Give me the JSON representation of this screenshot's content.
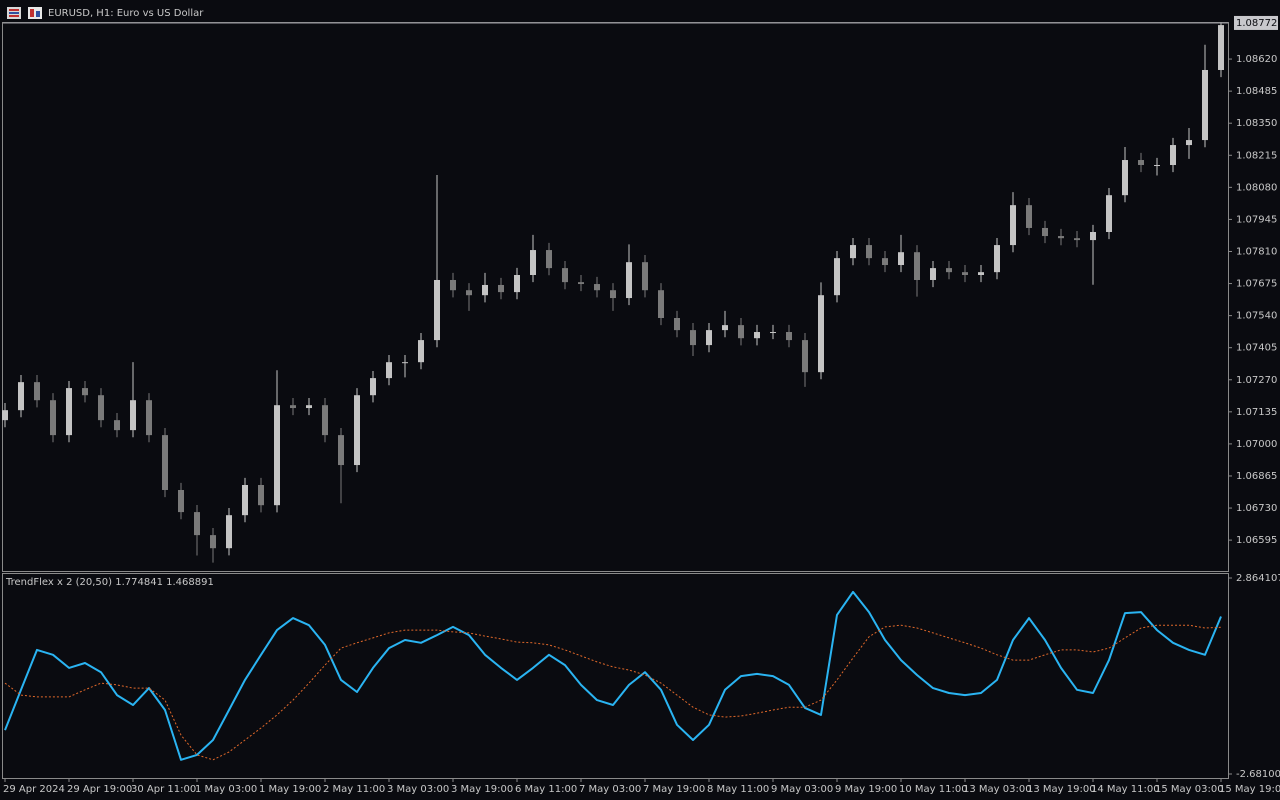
{
  "chart_data": [
    {
      "type": "candlestick",
      "title": "EURUSD, H1:  Euro vs US Dollar",
      "categories": [
        "29 Apr 2024",
        null,
        null,
        null,
        "29 Apr 19:00",
        null,
        null,
        null,
        "30 Apr 11:00",
        null,
        null,
        null,
        "1 May 03:00",
        null,
        null,
        null,
        "1 May 19:00",
        null,
        null,
        null,
        "2 May 11:00",
        null,
        null,
        null,
        "3 May 03:00",
        null,
        null,
        null,
        "3 May 19:00",
        null,
        null,
        null,
        "6 May 11:00",
        null,
        null,
        null,
        "7 May 03:00",
        null,
        null,
        null,
        "7 May 19:00",
        null,
        null,
        null,
        "8 May 11:00",
        null,
        null,
        null,
        "9 May 03:00",
        null,
        null,
        null,
        "9 May 19:00",
        null,
        null,
        null,
        "10 May 11:00",
        null,
        null,
        null,
        "13 May 03:00",
        null,
        null,
        null,
        "13 May 19:00",
        null,
        null,
        null,
        "14 May 11:00",
        null,
        null,
        null,
        "15 May 03:00",
        null,
        null,
        null,
        "15 May 19:00"
      ],
      "open": [
        1.071,
        1.07142,
        1.0726,
        1.07184,
        1.07037,
        1.07235,
        1.07205,
        1.071,
        1.07058,
        1.07184,
        1.07037,
        1.06806,
        1.06713,
        1.06616,
        1.06561,
        1.067,
        1.06827,
        1.06742,
        1.07163,
        1.07151,
        1.07163,
        1.07037,
        1.06911,
        1.07205,
        1.07277,
        1.07344,
        1.07344,
        1.07437,
        1.0769,
        1.07647,
        1.07626,
        1.07669,
        1.07639,
        1.07711,
        1.07816,
        1.0774,
        1.07681,
        1.07673,
        1.07647,
        1.07614,
        1.07765,
        1.07647,
        1.0753,
        1.07479,
        1.07416,
        1.07479,
        1.075,
        1.07445,
        1.07471,
        1.07471,
        1.07437,
        1.07302,
        1.07626,
        1.07782,
        1.07837,
        1.07782,
        1.07753,
        1.07807,
        1.0769,
        1.0774,
        1.07723,
        1.07711,
        1.07723,
        1.07837,
        1.08005,
        1.07909,
        1.07875,
        1.07866,
        1.07858,
        1.07892,
        1.08047,
        1.08195,
        1.08174,
        1.08174,
        1.08258,
        1.08279,
        1.08574
      ],
      "high": [
        1.07172,
        1.0729,
        1.0729,
        1.07214,
        1.07265,
        1.07265,
        1.07235,
        1.0713,
        1.07344,
        1.07214,
        1.07067,
        1.06836,
        1.06743,
        1.06646,
        1.0673,
        1.06857,
        1.06857,
        1.0731,
        1.07193,
        1.07193,
        1.07193,
        1.07067,
        1.07235,
        1.07307,
        1.07374,
        1.07374,
        1.07467,
        1.08132,
        1.0772,
        1.07677,
        1.0772,
        1.07699,
        1.07741,
        1.0788,
        1.07846,
        1.0777,
        1.07711,
        1.07703,
        1.07677,
        1.0784,
        1.07795,
        1.07677,
        1.0756,
        1.07509,
        1.07509,
        1.0756,
        1.0753,
        1.07501,
        1.07501,
        1.07501,
        1.07467,
        1.0768,
        1.07812,
        1.07867,
        1.07867,
        1.07812,
        1.0788,
        1.07837,
        1.0777,
        1.0777,
        1.07753,
        1.07753,
        1.07867,
        1.0806,
        1.08035,
        1.07939,
        1.07905,
        1.07896,
        1.07922,
        1.08077,
        1.0825,
        1.08225,
        1.08204,
        1.08288,
        1.0833,
        1.0868,
        1.08775
      ],
      "low": [
        1.0707,
        1.07112,
        1.07154,
        1.07007,
        1.07007,
        1.07175,
        1.0707,
        1.07028,
        1.07028,
        1.07007,
        1.06776,
        1.06683,
        1.0653,
        1.065,
        1.06531,
        1.0667,
        1.06712,
        1.06712,
        1.07121,
        1.07121,
        1.07007,
        1.0675,
        1.06881,
        1.07175,
        1.07247,
        1.0728,
        1.07314,
        1.07407,
        1.07617,
        1.0756,
        1.07596,
        1.07609,
        1.07609,
        1.07681,
        1.0771,
        1.07651,
        1.07643,
        1.07617,
        1.0756,
        1.07584,
        1.07617,
        1.075,
        1.07449,
        1.0737,
        1.07386,
        1.07449,
        1.07415,
        1.07415,
        1.07441,
        1.07407,
        1.0724,
        1.07272,
        1.07596,
        1.07752,
        1.07752,
        1.07723,
        1.07723,
        1.0762,
        1.0766,
        1.07693,
        1.07681,
        1.07681,
        1.07693,
        1.07807,
        1.07879,
        1.07845,
        1.07836,
        1.07828,
        1.0767,
        1.07862,
        1.08017,
        1.08144,
        1.0813,
        1.08144,
        1.082,
        1.08249,
        1.08544
      ],
      "close": [
        1.07142,
        1.0726,
        1.07184,
        1.07037,
        1.07235,
        1.07205,
        1.071,
        1.07058,
        1.07184,
        1.07037,
        1.06806,
        1.06713,
        1.06616,
        1.06561,
        1.067,
        1.06827,
        1.06742,
        1.07163,
        1.07151,
        1.07163,
        1.07037,
        1.06911,
        1.07205,
        1.07277,
        1.07344,
        1.07344,
        1.07437,
        1.0769,
        1.07647,
        1.07626,
        1.07669,
        1.07639,
        1.07711,
        1.07816,
        1.0774,
        1.07681,
        1.07673,
        1.07647,
        1.07614,
        1.07765,
        1.07647,
        1.0753,
        1.07479,
        1.07416,
        1.07479,
        1.075,
        1.07445,
        1.07471,
        1.07471,
        1.07437,
        1.07302,
        1.07626,
        1.07782,
        1.07837,
        1.07782,
        1.07753,
        1.07807,
        1.0769,
        1.0774,
        1.07723,
        1.07711,
        1.07723,
        1.07837,
        1.08005,
        1.07909,
        1.07875,
        1.07866,
        1.07858,
        1.07892,
        1.08047,
        1.08195,
        1.08174,
        1.08174,
        1.08258,
        1.08279,
        1.08574,
        1.08763
      ],
      "current_price": 1.08772,
      "ylim": [
        1.06465,
        1.08776
      ],
      "yticks": [
        {
          "value": 1.0862,
          "label": "1.08620"
        },
        1.08485,
        {
          "value": 1.0835,
          "label": "1.08350"
        },
        1.08215,
        {
          "value": 1.0808,
          "label": "1.08080"
        },
        1.07945,
        {
          "value": 1.0781,
          "label": "1.07810"
        },
        1.07675,
        {
          "value": 1.0754,
          "label": "1.07540"
        },
        1.07405,
        {
          "value": 1.0727,
          "label": "1.07270"
        },
        1.07135,
        {
          "value": 1.07,
          "label": "1.07000"
        },
        1.06865,
        {
          "value": 1.0673,
          "label": "1.06730"
        },
        1.06595
      ],
      "grid": false,
      "colors": {
        "up": "#c4c4c4",
        "down": "#7a7a7a"
      }
    },
    {
      "type": "line",
      "title": "TrendFlex x 2 (20,50)",
      "series": [
        {
          "color": "#2ab4f2",
          "style": "solid",
          "values": [
            -1.44,
            -0.3,
            0.83,
            0.69,
            0.32,
            0.46,
            0.2,
            -0.45,
            -0.73,
            -0.25,
            -0.87,
            -2.28,
            -2.14,
            -1.72,
            -0.87,
            -0.02,
            0.69,
            1.39,
            1.73,
            1.53,
            0.97,
            -0.02,
            -0.36,
            0.32,
            0.88,
            1.11,
            1.03,
            1.25,
            1.48,
            1.25,
            0.69,
            0.32,
            -0.02,
            0.32,
            0.69,
            0.4,
            -0.16,
            -0.59,
            -0.73,
            -0.16,
            0.2,
            -0.3,
            -1.29,
            -1.72,
            -1.29,
            -0.3,
            0.09,
            0.15,
            0.09,
            -0.16,
            -0.81,
            -1.01,
            1.82,
            2.47,
            1.9,
            1.11,
            0.54,
            0.12,
            -0.25,
            -0.39,
            -0.45,
            -0.39,
            -0.02,
            1.11,
            1.73,
            1.11,
            0.32,
            -0.3,
            -0.39,
            0.54,
            1.87,
            1.9,
            1.39,
            1.03,
            0.83,
            0.69,
            1.774841
          ]
        },
        {
          "color": "#e0682a",
          "style": "dashed",
          "values": [
            -0.11,
            -0.45,
            -0.5,
            -0.5,
            -0.5,
            -0.3,
            -0.11,
            -0.16,
            -0.25,
            -0.25,
            -0.59,
            -1.58,
            -2.14,
            -2.28,
            -2.06,
            -1.72,
            -1.38,
            -1.01,
            -0.59,
            -0.11,
            0.4,
            0.88,
            1.03,
            1.17,
            1.31,
            1.39,
            1.39,
            1.39,
            1.34,
            1.31,
            1.22,
            1.14,
            1.05,
            1.03,
            0.97,
            0.83,
            0.66,
            0.49,
            0.35,
            0.26,
            0.12,
            -0.11,
            -0.45,
            -0.79,
            -1.01,
            -1.07,
            -1.04,
            -0.96,
            -0.87,
            -0.79,
            -0.79,
            -0.59,
            -0.02,
            0.6,
            1.2,
            1.48,
            1.53,
            1.45,
            1.31,
            1.17,
            1.03,
            0.88,
            0.69,
            0.54,
            0.54,
            0.69,
            0.83,
            0.83,
            0.77,
            0.88,
            1.17,
            1.45,
            1.53,
            1.53,
            1.53,
            1.45,
            1.468891
          ]
        }
      ],
      "ylim": [
        -2.681005,
        2.864107
      ],
      "yticks": [
        2.864107,
        -2.681005
      ]
    }
  ]
}
